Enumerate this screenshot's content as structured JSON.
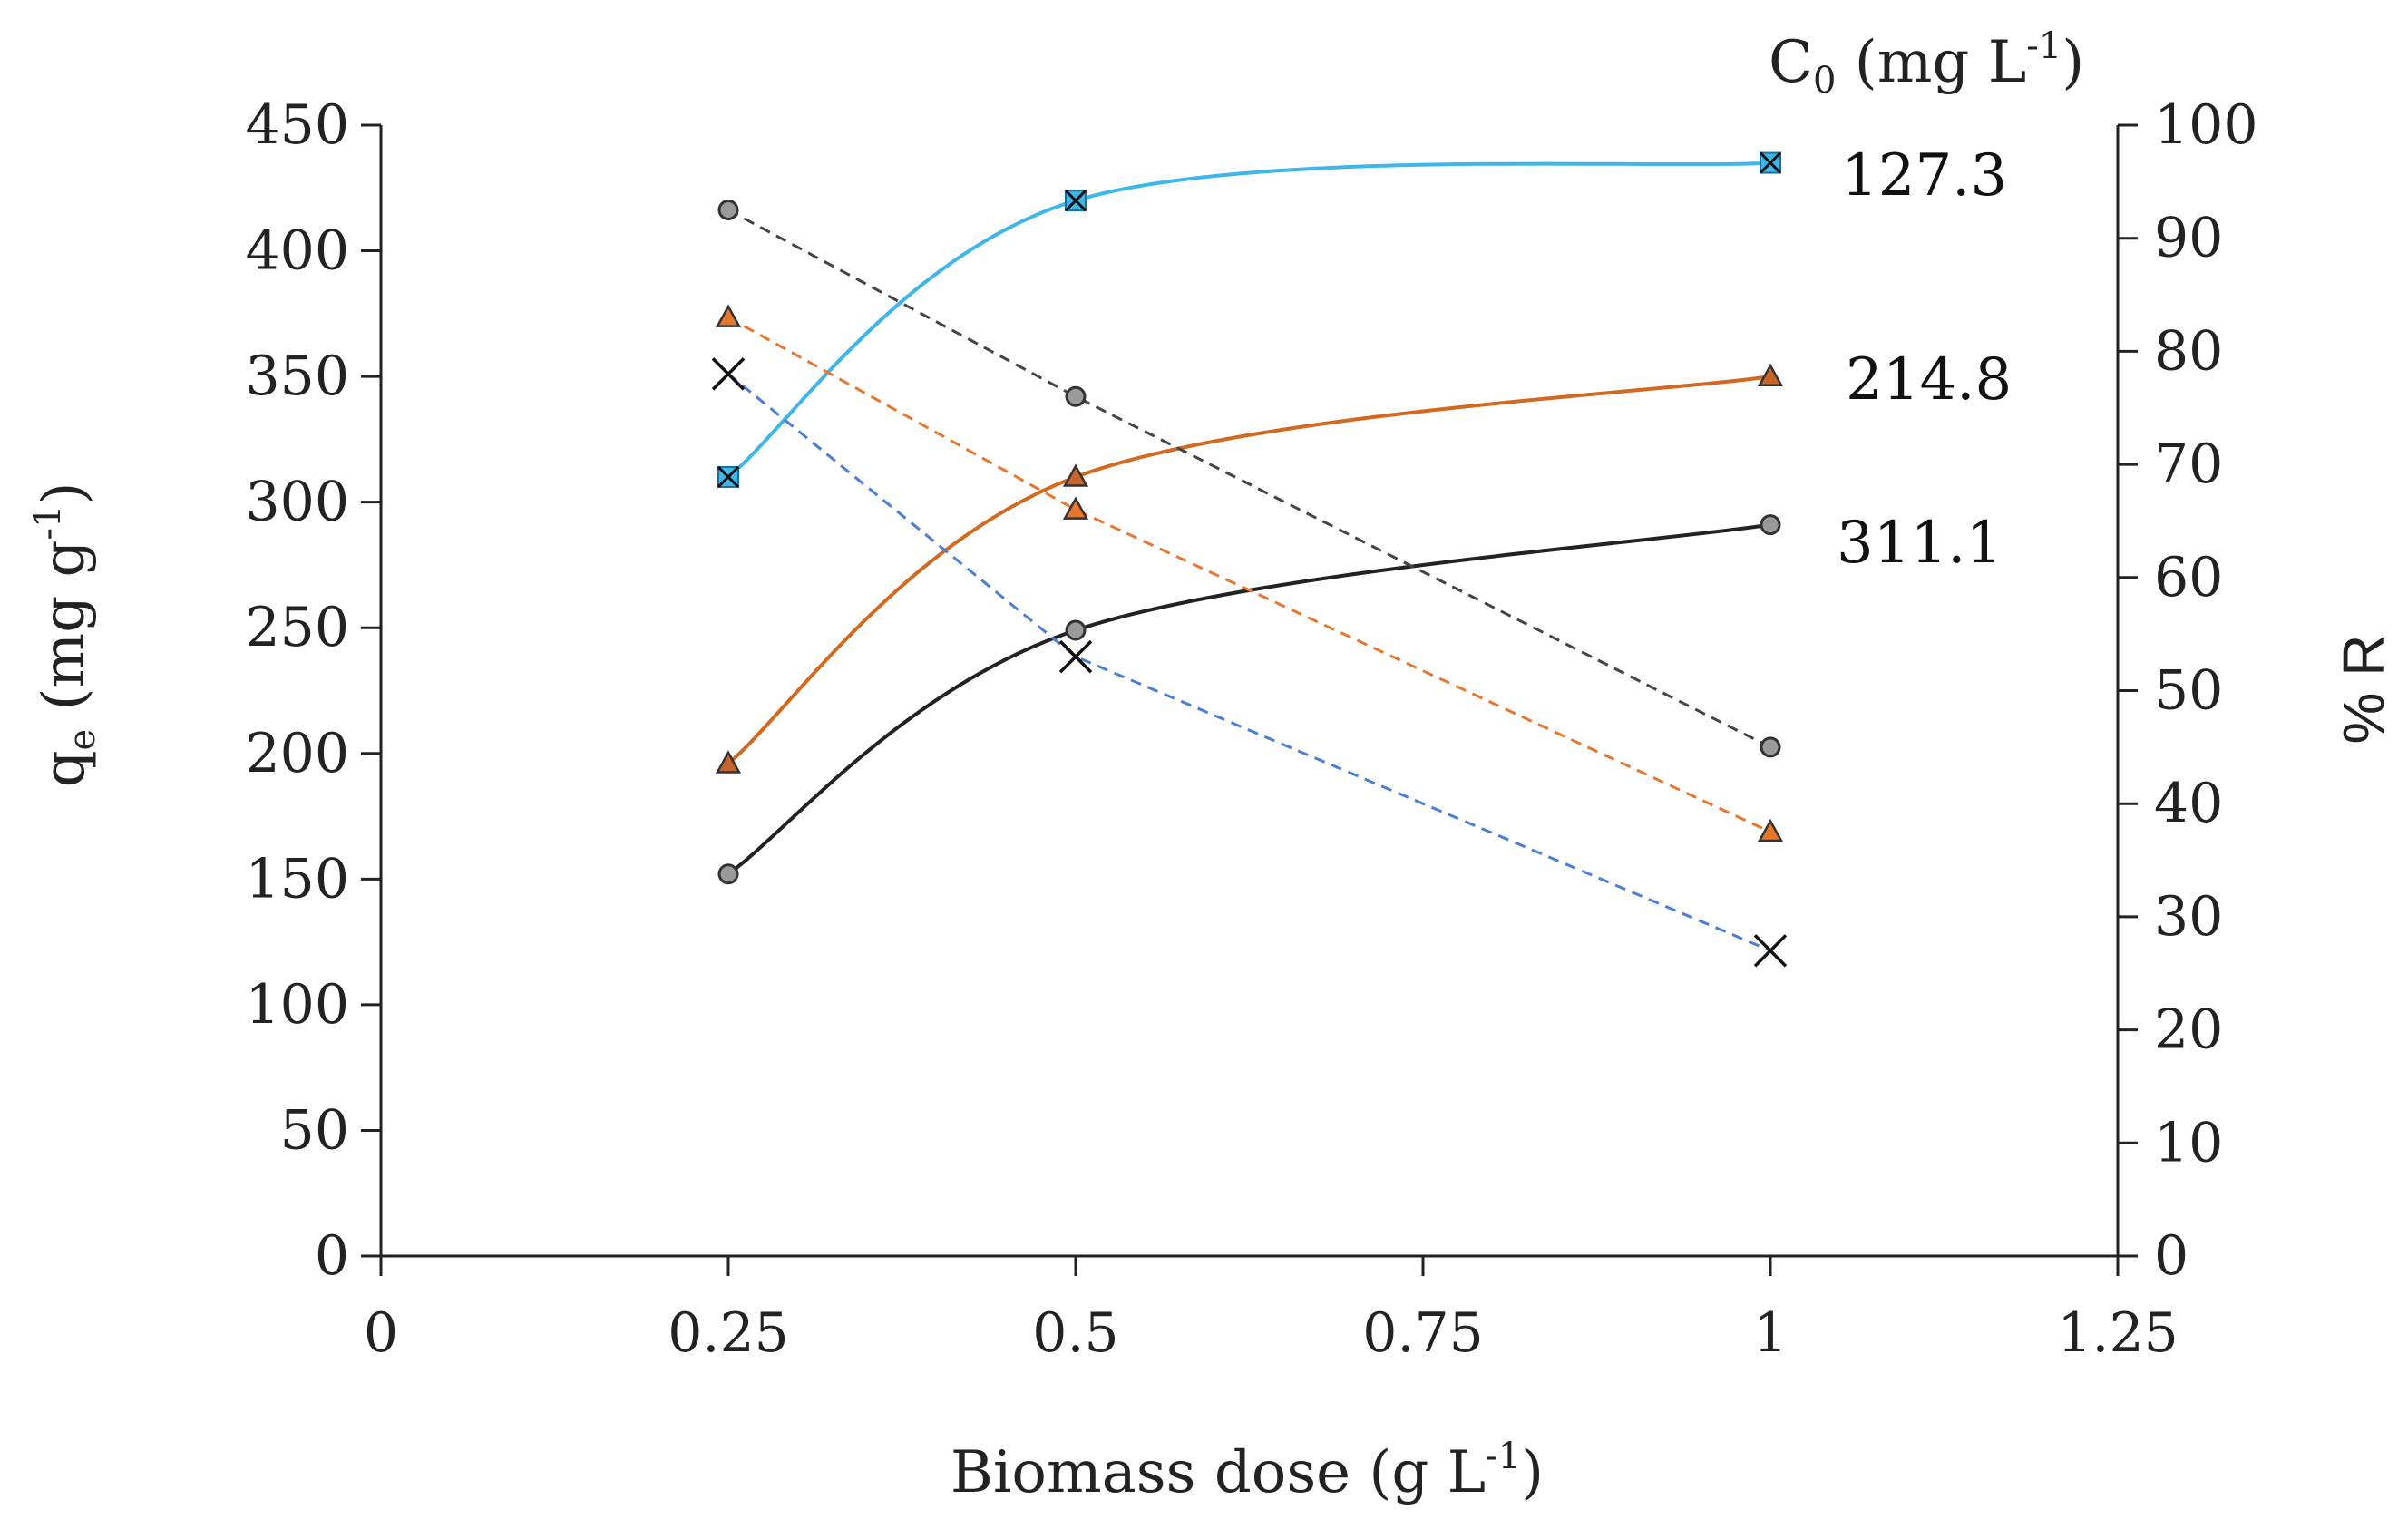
{
  "chart_data": {
    "type": "line",
    "xlabel": "Biomass dose (g L",
    "xlabel_sup": "-1",
    "xlabel_tail": ")",
    "ylabel_left": "q",
    "ylabel_left_sub": "e",
    "ylabel_left_tail": " (mg g",
    "ylabel_left_sup": "-1",
    "ylabel_left_close": ")",
    "ylabel_right": "% R",
    "legend_title": "C",
    "legend_title_sub": "0",
    "legend_title_tail": " (mg L",
    "legend_title_sup": "-1",
    "legend_title_close": ")",
    "xlim": [
      0,
      1.25
    ],
    "ylim_left": [
      0,
      450
    ],
    "ylim_right": [
      0,
      100
    ],
    "x_ticks": [
      "0",
      "0.25",
      "0.5",
      "0.75",
      "1",
      "1.25"
    ],
    "y_left_ticks": [
      "0",
      "50",
      "100",
      "150",
      "200",
      "250",
      "300",
      "350",
      "400",
      "450"
    ],
    "y_right_ticks": [
      "0",
      "10",
      "20",
      "30",
      "40",
      "50",
      "60",
      "70",
      "80",
      "90",
      "100"
    ],
    "x": [
      0.25,
      0.5,
      1
    ],
    "series": [
      {
        "label": "127.3",
        "axis": "left",
        "style": "solid",
        "marker": "x-square",
        "color": "#3fb6e8",
        "values": [
          310,
          420,
          435
        ]
      },
      {
        "label": "214.8",
        "axis": "left",
        "style": "solid",
        "marker": "triangle",
        "color": "#d2691e",
        "values": [
          196,
          310,
          350
        ]
      },
      {
        "label": "311.1",
        "axis": "left",
        "style": "solid",
        "marker": "circle",
        "color": "#222222",
        "values": [
          152,
          249,
          291
        ]
      },
      {
        "axis": "right",
        "style": "dashed",
        "marker": "circle",
        "color": "#444444",
        "values": [
          92.5,
          76,
          45
        ]
      },
      {
        "axis": "right",
        "style": "dashed",
        "marker": "triangle",
        "color": "#e8772e",
        "values": [
          83,
          66,
          37.5
        ]
      },
      {
        "axis": "right",
        "style": "dashed",
        "marker": "x",
        "color": "#4a7fd4",
        "values": [
          78,
          53,
          27
        ]
      }
    ]
  }
}
